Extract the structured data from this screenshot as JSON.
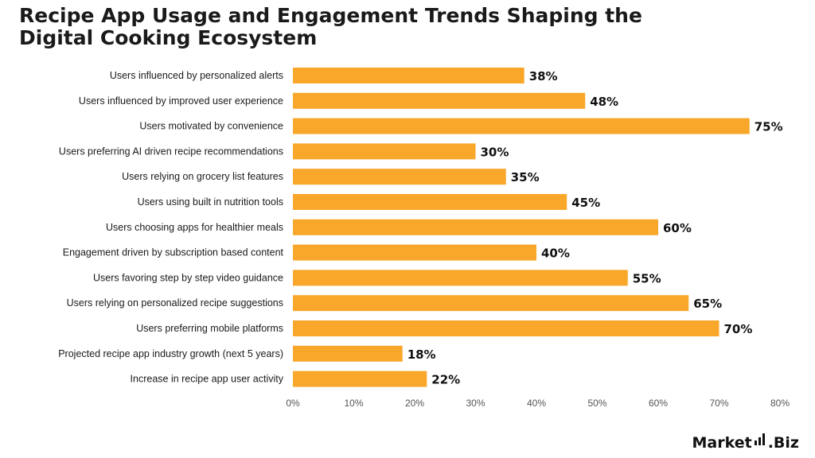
{
  "title": "Recipe App Usage and Engagement Trends Shaping the Digital Cooking Ecosystem",
  "brand": {
    "name_left": "Market",
    "name_right": ".Biz",
    "icon": "bar-chart-icon"
  },
  "colors": {
    "bar": "#F9A72B",
    "text": "#1a1a1a",
    "axis": "#555555"
  },
  "chart_data": {
    "type": "bar",
    "orientation": "horizontal",
    "categories": [
      "Users influenced by personalized alerts",
      "Users influenced by improved user experience",
      "Users motivated by convenience",
      "Users preferring AI driven recipe recommendations",
      "Users relying on grocery list features",
      "Users using built in nutrition tools",
      "Users choosing apps for healthier meals",
      "Engagement driven by subscription based content",
      "Users favoring step by step video guidance",
      "Users relying on personalized recipe suggestions",
      "Users preferring mobile platforms",
      "Projected recipe app industry growth (next 5 years)",
      "Increase in recipe app user activity"
    ],
    "values": [
      38,
      48,
      75,
      30,
      35,
      45,
      60,
      40,
      55,
      65,
      70,
      18,
      22
    ],
    "value_labels": [
      "38%",
      "48%",
      "75%",
      "30%",
      "35%",
      "45%",
      "60%",
      "40%",
      "55%",
      "65%",
      "70%",
      "18%",
      "22%"
    ],
    "xlim": [
      0,
      80
    ],
    "xticks": [
      0,
      10,
      20,
      30,
      40,
      50,
      60,
      70,
      80
    ],
    "xtick_labels": [
      "0%",
      "10%",
      "20%",
      "30%",
      "40%",
      "50%",
      "60%",
      "70%",
      "80%"
    ],
    "grid": false,
    "legend": "none"
  }
}
